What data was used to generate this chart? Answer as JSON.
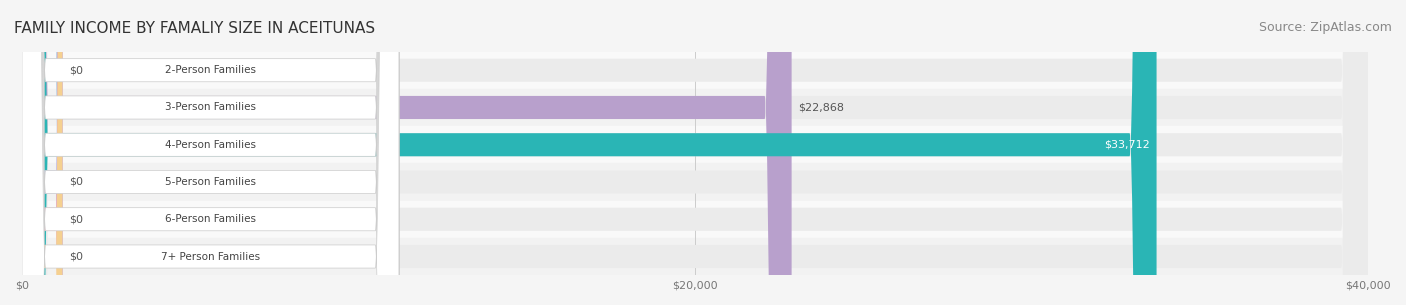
{
  "title": "FAMILY INCOME BY FAMALIY SIZE IN ACEITUNAS",
  "source": "Source: ZipAtlas.com",
  "categories": [
    "2-Person Families",
    "3-Person Families",
    "4-Person Families",
    "5-Person Families",
    "6-Person Families",
    "7+ Person Families"
  ],
  "values": [
    0,
    22868,
    33712,
    0,
    0,
    0
  ],
  "bar_colors": [
    "#a8c4e0",
    "#b8a0cc",
    "#2ab5b5",
    "#b0b8e8",
    "#f0a0b0",
    "#f5d090"
  ],
  "label_colors": [
    "#a8c4e0",
    "#b8a0cc",
    "#2ab5b5",
    "#b0b8e8",
    "#f0a0b0",
    "#f5d090"
  ],
  "value_labels": [
    "$0",
    "$22,868",
    "$33,712",
    "$0",
    "$0",
    "$0"
  ],
  "value_label_inside": [
    false,
    false,
    true,
    false,
    false,
    false
  ],
  "xlim": [
    0,
    40000
  ],
  "xticks": [
    0,
    20000,
    40000
  ],
  "xticklabels": [
    "$0",
    "$20,000",
    "$40,000"
  ],
  "background_color": "#f5f5f5",
  "bar_background_color": "#ebebeb",
  "title_fontsize": 11,
  "source_fontsize": 9,
  "bar_height": 0.62,
  "row_bg_colors": [
    "#f9f9f9",
    "#f2f2f2"
  ]
}
